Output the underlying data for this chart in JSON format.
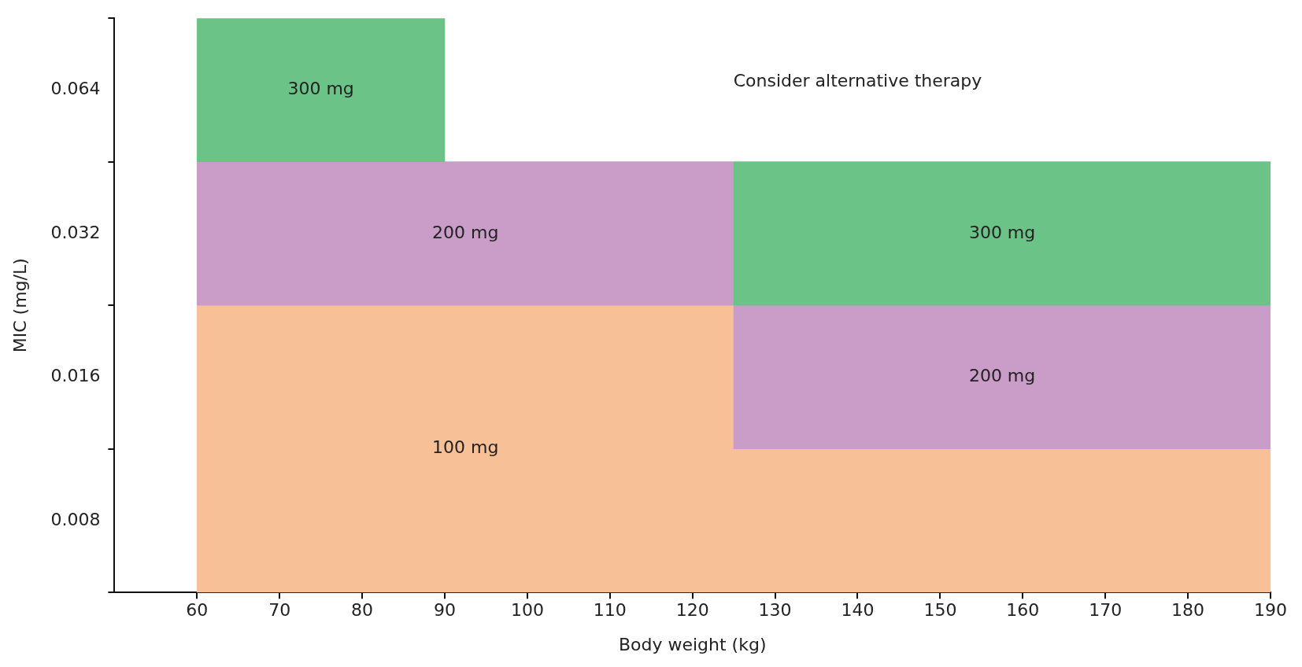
{
  "chart_data": {
    "type": "bar",
    "orientation": "horizontal",
    "xlabel": "Body weight (kg)",
    "ylabel": "MIC (mg/L)",
    "categories": [
      "0.064",
      "0.032",
      "0.016",
      "0.008"
    ],
    "series": [
      {
        "name": "300 mg",
        "color": "#6cc387",
        "values": [
          30,
          65,
          null,
          null
        ],
        "base": [
          60,
          125,
          null,
          null
        ]
      },
      {
        "name": "200 mg",
        "color": "#c99dc8",
        "values": [
          null,
          65,
          65,
          null
        ],
        "base": [
          null,
          60,
          125,
          null
        ]
      },
      {
        "name": "100 mg",
        "color": "#f8c096",
        "values": [
          null,
          null,
          65,
          130
        ],
        "base": [
          null,
          null,
          60,
          60
        ]
      }
    ],
    "xlim": [
      50,
      190
    ],
    "xticks": [
      60,
      70,
      80,
      90,
      100,
      110,
      120,
      130,
      140,
      150,
      160,
      170,
      180,
      190
    ],
    "annotations": [
      "Consider alternative therapy"
    ],
    "grid": false,
    "legend": false
  }
}
